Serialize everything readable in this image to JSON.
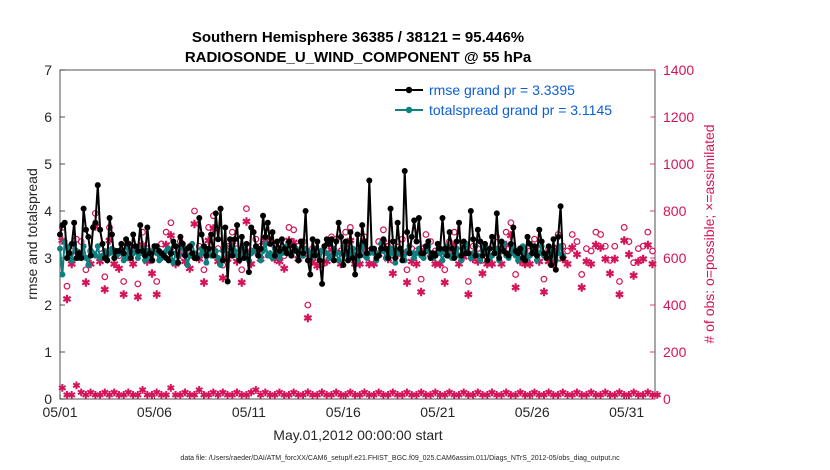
{
  "chart_data": {
    "type": "line",
    "title": "Southern Hemisphere 36385 / 38121 = 95.446%",
    "subtitle": "RADIOSONDE_U_WIND_COMPONENT @ 55 hPa",
    "xlabel": "May.01,2012 00:00:00 start",
    "ylabel": "rmse and totalspread",
    "ylabel_right": "# of obs: o=possible; ×=assimilated",
    "footer": "data file: /Users/raeder/DAI/ATM_forcXX/CAM6_setup/f.e21.FHIST_BGC.f09_025.CAM6assim.011/Diags_NTrS_2012-05/obs_diag_output.nc",
    "xlim": [
      0,
      31.5
    ],
    "ylim": [
      0,
      7
    ],
    "ylim_right": [
      0,
      1400
    ],
    "x_tick_values": [
      0,
      5,
      10,
      15,
      20,
      25,
      30
    ],
    "x_tick_labels": [
      "05/01",
      "05/06",
      "05/11",
      "05/16",
      "05/21",
      "05/26",
      "05/31"
    ],
    "y_ticks": [
      "0",
      "1",
      "2",
      "3",
      "4",
      "5",
      "6",
      "7"
    ],
    "y_ticks_right": [
      "0",
      "200",
      "400",
      "600",
      "800",
      "1000",
      "1200",
      "1400"
    ],
    "colors": {
      "rmse": "#000000",
      "spread": "#0e8080",
      "obs": "#d4145a",
      "axis": "#262626"
    },
    "series": [
      {
        "name": "rmse",
        "legend": "rmse grand pr = 3.3395",
        "values": [
          3.5,
          3.7,
          3.75,
          3.0,
          3.1,
          3.3,
          3.75,
          3.0,
          3.1,
          3.0,
          4.05,
          3.6,
          3.45,
          3.05,
          3.65,
          3.75,
          4.55,
          3.6,
          3.3,
          3.0,
          2.95,
          3.85,
          3.5,
          3.0,
          3.15,
          3.15,
          3.3,
          3.1,
          3.4,
          3.3,
          3.0,
          3.5,
          3.25,
          3.15,
          3.7,
          3.15,
          3.05,
          3.65,
          3.1,
          2.95,
          3.25,
          3.25,
          3.15,
          3.1,
          3.05,
          3.0,
          2.95,
          3.1,
          3.35,
          3.25,
          2.9,
          3.45,
          3.3,
          3.05,
          3.2,
          3.25,
          3.1,
          3.0,
          3.0,
          3.85,
          3.5,
          3.25,
          3.05,
          3.2,
          3.5,
          3.05,
          3.95,
          3.4,
          4.05,
          2.95,
          3.65,
          2.5,
          3.4,
          3.05,
          3.4,
          3.7,
          2.95,
          3.45,
          3.0,
          3.3,
          2.7,
          3.65,
          3.55,
          3.25,
          3.05,
          3.2,
          3.9,
          3.45,
          3.75,
          3.3,
          3.55,
          3.05,
          3.35,
          3.15,
          3.4,
          3.2,
          3.1,
          3.35,
          3.05,
          3.25,
          3.15,
          2.95,
          3.35,
          3.1,
          4.0,
          2.95,
          2.65,
          3.4,
          3.05,
          3.35,
          2.95,
          2.45,
          3.25,
          3.4,
          3.3,
          3.4,
          2.95,
          3.35,
          3.75,
          3.45,
          2.85,
          3.35,
          2.95,
          3.55,
          3.0,
          2.65,
          3.5,
          3.05,
          3.7,
          3.35,
          3.1,
          4.65,
          3.2,
          3.2,
          3.0,
          3.05,
          3.2,
          3.4,
          3.2,
          3.0,
          4.05,
          3.35,
          3.0,
          3.75,
          3.2,
          2.95,
          4.85,
          3.55,
          3.1,
          3.45,
          3.8,
          3.35,
          3.85,
          3.1,
          3.1,
          3.25,
          3.35,
          3.0,
          3.1,
          3.05,
          3.3,
          3.2,
          3.85,
          3.2,
          3.05,
          3.55,
          3.2,
          3.0,
          3.35,
          3.75,
          3.05,
          3.35,
          3.1,
          3.1,
          4.0,
          3.4,
          3.05,
          3.6,
          3.35,
          3.05,
          3.3,
          2.95,
          3.2,
          3.45,
          3.1,
          3.95,
          3.0,
          3.35,
          3.15,
          3.1,
          3.05,
          3.3,
          3.65,
          3.15,
          3.1,
          3.2,
          3.0,
          2.95,
          3.45,
          3.3,
          3.1,
          3.25,
          3.05,
          3.6,
          3.35,
          3.1,
          3.0,
          3.25,
          2.85,
          3.4,
          2.75,
          3.45,
          4.1,
          3.0
        ],
        "x_start": 0.0,
        "x_step": 0.125
      },
      {
        "name": "totalspread",
        "legend": "totalspread grand pr = 3.1145",
        "values": [
          3.2,
          2.65,
          3.35,
          3.25,
          3.1,
          2.95,
          3.3,
          3.15,
          3.0,
          3.05,
          3.25,
          3.0,
          2.85,
          3.15,
          3.1,
          3.05,
          3.25,
          3.0,
          3.05,
          3.15,
          2.95,
          3.1,
          3.2,
          3.0,
          3.05,
          3.1,
          3.15,
          2.95,
          3.0,
          3.2,
          3.05,
          3.1,
          3.15,
          3.0,
          3.1,
          3.2,
          2.95,
          3.15,
          3.0,
          3.15,
          3.25,
          3.1,
          2.95,
          3.0,
          3.1,
          3.15,
          3.2,
          3.1,
          2.9,
          3.1,
          3.05,
          3.25,
          3.2,
          3.1,
          2.85,
          3.05,
          3.3,
          3.1,
          3.0,
          3.05,
          3.2,
          3.1,
          2.9,
          3.1,
          3.05,
          3.2,
          3.15,
          3.0,
          2.85,
          3.15,
          3.25,
          3.05,
          3.1,
          3.25,
          3.15,
          3.05,
          3.0,
          3.1,
          3.2,
          3.1,
          2.95,
          3.1,
          3.15,
          3.2,
          3.05,
          2.95,
          3.15,
          3.3,
          3.05,
          3.1,
          3.0,
          3.2,
          3.15,
          3.0,
          3.1,
          3.15,
          3.25,
          3.1,
          3.05,
          3.15,
          3.2,
          2.95,
          3.1,
          3.05,
          3.2,
          3.15,
          3.0,
          3.1,
          3.2,
          3.05,
          2.95,
          3.15,
          3.25,
          3.1,
          3.0,
          3.05,
          3.2,
          3.1,
          2.95,
          3.1,
          3.25,
          3.15,
          3.05,
          3.1,
          3.2,
          3.05,
          2.95,
          3.15,
          3.25,
          3.05,
          3.0,
          3.1,
          3.2,
          3.1,
          2.95,
          3.1,
          3.3,
          3.15,
          3.0,
          3.05,
          3.2,
          3.1,
          2.9,
          3.1,
          3.2,
          3.05,
          2.95,
          3.15,
          3.25,
          3.1,
          3.0,
          3.1,
          3.2,
          3.05,
          3.0,
          3.15,
          3.25,
          3.1,
          3.0,
          3.05,
          3.3,
          3.1,
          2.95,
          3.15,
          3.25,
          3.05,
          3.0,
          3.1,
          3.2,
          3.05,
          2.95,
          3.15,
          3.3,
          3.1,
          3.0,
          3.1,
          3.25,
          3.05,
          2.95,
          3.15,
          3.25,
          3.1,
          3.0,
          3.05,
          3.2,
          3.1,
          2.95,
          3.15,
          3.3,
          3.05,
          3.0,
          3.1,
          3.2,
          3.05,
          2.95,
          3.15,
          3.25,
          3.1,
          3.0,
          3.05,
          3.2,
          3.1,
          2.95,
          3.1,
          3.25,
          3.05,
          3.0,
          3.1,
          3.2,
          3.05,
          2.95,
          3.1,
          3.25,
          3.05
        ],
        "x_start": 0.0,
        "x_step": 0.125
      }
    ],
    "obs_possible": {
      "x_step": 0.25,
      "values": [
        700,
        450,
        600,
        650,
        640,
        520,
        600,
        760,
        610,
        490,
        700,
        600,
        580,
        470,
        630,
        600,
        460,
        680,
        610,
        560,
        470,
        630,
        680,
        720,
        600,
        640,
        610,
        580,
        770,
        620,
        520,
        700,
        750,
        610,
        540,
        620,
        680,
        610,
        520,
        780,
        600,
        650,
        620,
        700,
        640,
        620,
        610,
        580,
        700,
        690,
        620,
        640,
        370,
        610,
        590,
        600,
        610,
        660,
        650,
        600,
        680,
        700,
        600,
        600,
        660,
        600,
        600,
        640,
        690,
        620,
        560,
        640,
        650,
        520,
        610,
        600,
        480,
        670,
        640,
        600,
        600,
        520,
        640,
        680,
        600,
        630,
        470,
        620,
        610,
        560,
        600,
        600,
        660,
        600,
        680,
        720,
        500,
        610,
        600,
        600,
        650,
        610,
        480,
        610,
        600,
        670,
        620,
        600,
        670,
        640,
        500,
        610,
        600,
        680,
        670,
        620,
        560,
        620,
        470,
        700,
        640,
        550,
        610,
        620,
        680,
        600
      ],
      "low_values": [
        50,
        20,
        20,
        60,
        30,
        20,
        30,
        20,
        20,
        30,
        20,
        30,
        20,
        20,
        30,
        20,
        20,
        40,
        20,
        20,
        30,
        20,
        20,
        50,
        20,
        20,
        30,
        20,
        20,
        40,
        20,
        20,
        30,
        20,
        30,
        20,
        20,
        30,
        20,
        20,
        30,
        40,
        20,
        30,
        20,
        20,
        30,
        20,
        20,
        30,
        20,
        20,
        30,
        20,
        20,
        30,
        20,
        20,
        30,
        20,
        20,
        30,
        20,
        20,
        30,
        20,
        20,
        30,
        20,
        20,
        30,
        20,
        20,
        30,
        20,
        20,
        30,
        20,
        20,
        30,
        20,
        20,
        30,
        20,
        20,
        30,
        20,
        20,
        30,
        20,
        20,
        30,
        20,
        20,
        30,
        20,
        20,
        30,
        20,
        20,
        30,
        20,
        20,
        30,
        20,
        20,
        30,
        20,
        20,
        30,
        20,
        20,
        30,
        20,
        20,
        30,
        20,
        20,
        30,
        20,
        20,
        30,
        20,
        20,
        30,
        20,
        20
      ]
    },
    "legend_position": "top-right"
  }
}
